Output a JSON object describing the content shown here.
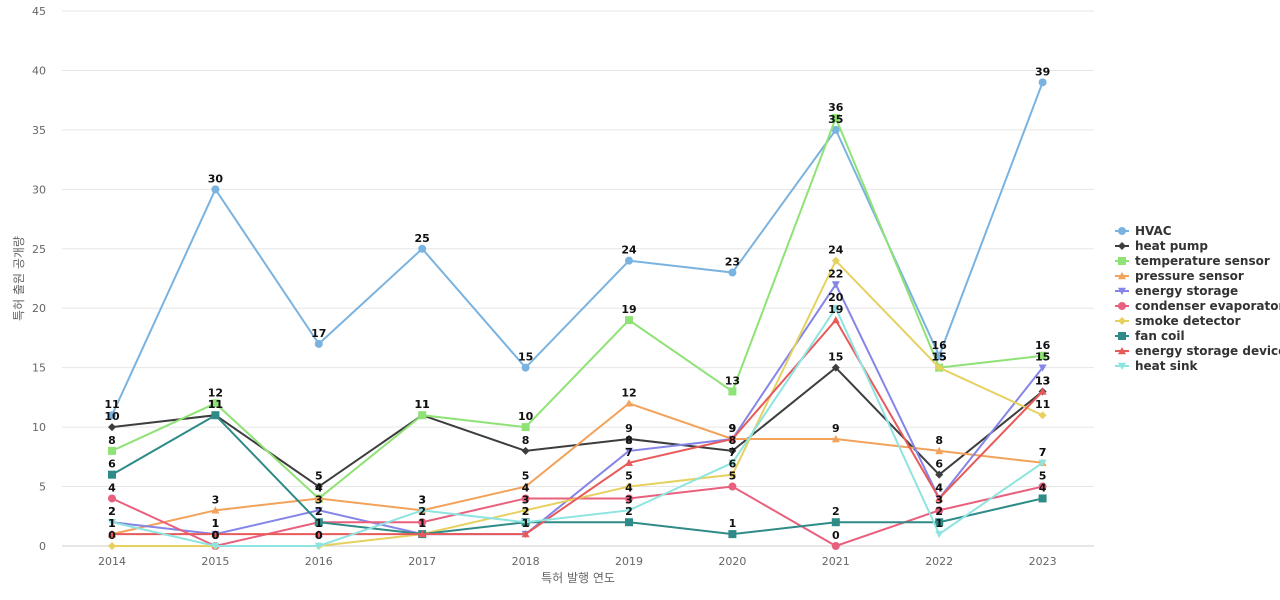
{
  "chart_data": {
    "type": "line",
    "xlabel": "특허 발행 연도",
    "ylabel": "특허 출원 공개량",
    "ylim": [
      0,
      45
    ],
    "yticks": [
      0,
      5,
      10,
      15,
      20,
      25,
      30,
      35,
      40,
      45
    ],
    "x": [
      "2014",
      "2015",
      "2016",
      "2017",
      "2018",
      "2019",
      "2020",
      "2021",
      "2022",
      "2023"
    ],
    "grid": true,
    "legend_position": "right",
    "series": [
      {
        "name": "HVAC",
        "color": "#7ab3e0",
        "marker": "circle",
        "values": [
          11,
          30,
          17,
          25,
          15,
          24,
          23,
          35,
          16,
          39
        ]
      },
      {
        "name": "heat pump",
        "color": "#3d3d3d",
        "marker": "diamond",
        "values": [
          10,
          11,
          5,
          11,
          8,
          9,
          8,
          15,
          6,
          13
        ]
      },
      {
        "name": "temperature sensor",
        "color": "#8fe276",
        "marker": "square",
        "values": [
          8,
          12,
          4,
          11,
          10,
          19,
          13,
          36,
          15,
          16
        ]
      },
      {
        "name": "pressure sensor",
        "color": "#f2a25a",
        "marker": "triangle-up",
        "values": [
          1,
          3,
          4,
          3,
          5,
          12,
          9,
          9,
          8,
          7
        ]
      },
      {
        "name": "energy storage",
        "color": "#8585e8",
        "marker": "triangle-down",
        "values": [
          2,
          1,
          3,
          1,
          1,
          8,
          9,
          22,
          4,
          15
        ]
      },
      {
        "name": "condenser evaporator",
        "color": "#e8607e",
        "marker": "circle",
        "values": [
          4,
          0,
          2,
          2,
          4,
          4,
          5,
          0,
          3,
          5
        ]
      },
      {
        "name": "smoke detector",
        "color": "#e6d15f",
        "marker": "diamond",
        "values": [
          0,
          0,
          0,
          1,
          3,
          5,
          6,
          24,
          15,
          11
        ]
      },
      {
        "name": "fan coil",
        "color": "#2e8b87",
        "marker": "square",
        "values": [
          6,
          11,
          2,
          1,
          2,
          2,
          1,
          2,
          2,
          4
        ]
      },
      {
        "name": "energy storage device",
        "color": "#e85a5a",
        "marker": "triangle-up",
        "values": [
          1,
          1,
          1,
          1,
          1,
          7,
          9,
          19,
          4,
          13
        ]
      },
      {
        "name": "heat sink",
        "color": "#8ee4e0",
        "marker": "triangle-down",
        "values": [
          2,
          0,
          0,
          3,
          2,
          3,
          7,
          20,
          1,
          7
        ]
      }
    ]
  }
}
